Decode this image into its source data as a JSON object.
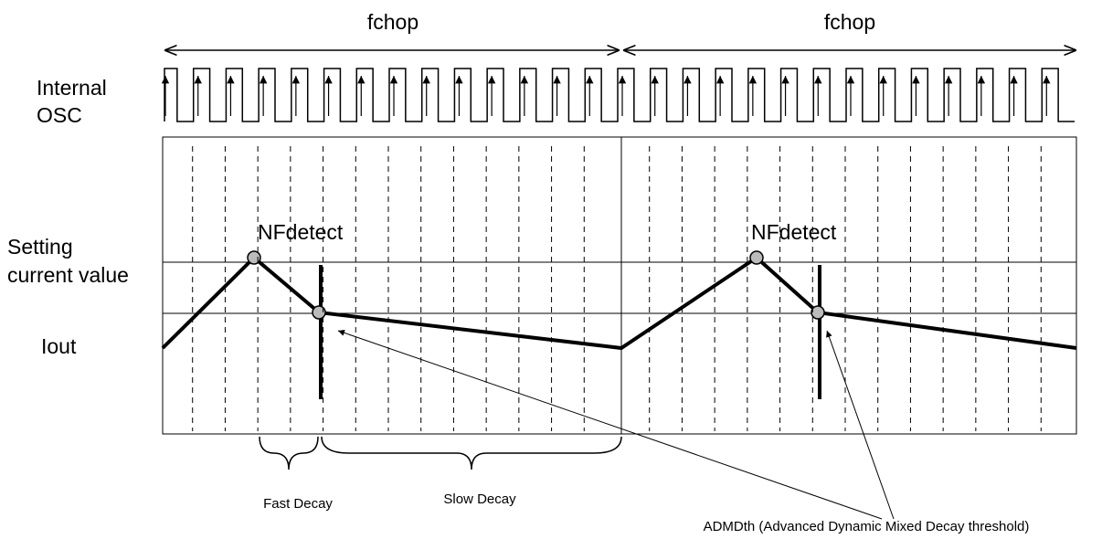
{
  "fchop_left": "fchop",
  "fchop_right": "fchop",
  "osc_label": [
    "Internal",
    "OSC"
  ],
  "setting_label": [
    "Setting",
    "current value"
  ],
  "iout_label": "Iout",
  "nfdetect_left": "NFdetect",
  "nfdetect_right": "NFdetect",
  "fast_decay": "Fast Decay",
  "slow_decay": "Slow Decay",
  "admdth": "ADMDth (Advanced Dynamic Mixed Decay threshold)"
}
